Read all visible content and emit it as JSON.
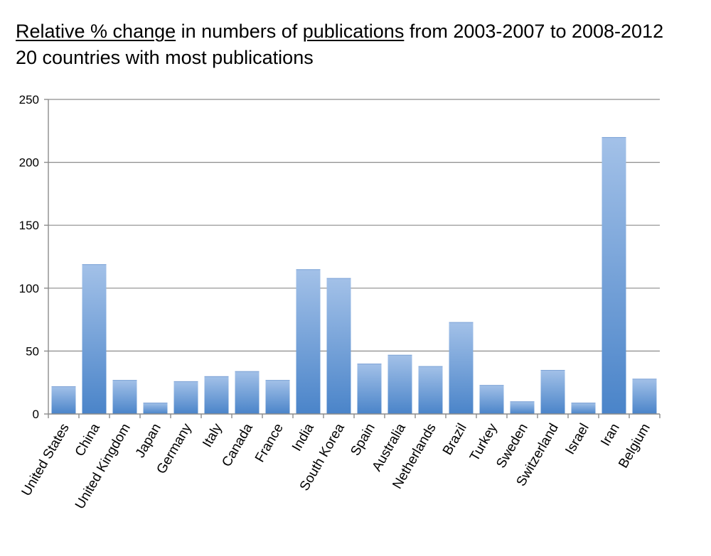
{
  "chart_data": {
    "type": "bar",
    "title_parts": [
      {
        "text": "Relative % change",
        "underline": true
      },
      {
        "text": " in numbers of ",
        "underline": false
      },
      {
        "text": "publications",
        "underline": true
      },
      {
        "text": " from 2003-2007 to 2008-2012",
        "underline": false
      }
    ],
    "subtitle": "20 countries with most publications",
    "categories": [
      "United States",
      "China",
      "United Kingdom",
      "Japan",
      "Germany",
      "Italy",
      "Canada",
      "France",
      "India",
      "South Korea",
      "Spain",
      "Australia",
      "Netherlands",
      "Brazil",
      "Turkey",
      "Sweden",
      "Switzerland",
      "Israel",
      "Iran",
      "Belgium"
    ],
    "values": [
      22,
      119,
      27,
      9,
      26,
      30,
      34,
      27,
      115,
      108,
      40,
      47,
      38,
      73,
      23,
      10,
      35,
      9,
      220,
      28
    ],
    "ylim": [
      0,
      250
    ],
    "yticks": [
      "0",
      "50",
      "100",
      "150",
      "200",
      "250"
    ],
    "grid": true,
    "colors": {
      "bar_top": "#a3c1e8",
      "bar_bottom": "#4a84c9",
      "grid": "#8c8c8c",
      "axis": "#8c8c8c"
    }
  }
}
